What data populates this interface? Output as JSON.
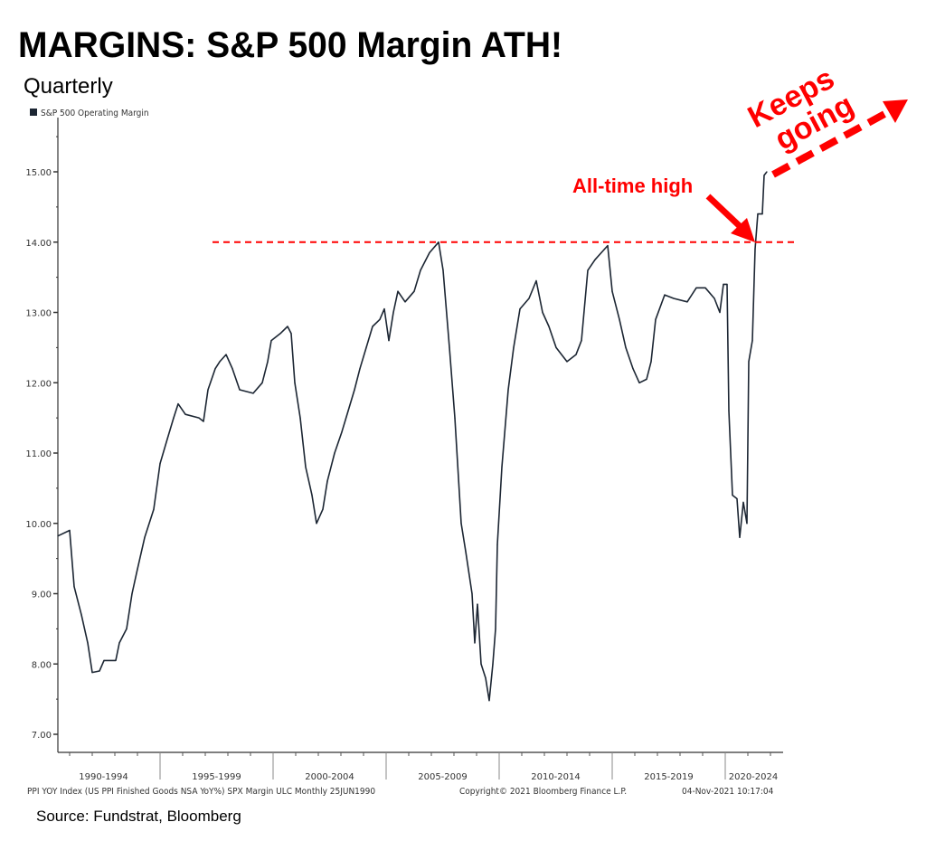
{
  "title": "MARGINS: S&P 500 Margin ATH!",
  "subtitle": "Quarterly",
  "source": "Source: Fundstrat, Bloomberg",
  "footer": {
    "left": "PPI YOY Index (US PPI Finished Goods NSA YoY%) SPX Margin ULC  Monthly 25JUN1990",
    "middle": "Copyright© 2021 Bloomberg Finance L.P.",
    "right": "04-Nov-2021 10:17:04"
  },
  "colors": {
    "line": "#1c2633",
    "annotation": "#ff0000"
  },
  "chart_data": {
    "type": "line",
    "title": "MARGINS: S&P 500 Margin ATH!",
    "xlabel": "",
    "ylabel": "",
    "legend": {
      "entries": [
        "S&P 500 Operating Margin"
      ],
      "placement": "top-left"
    },
    "ylim": [
      6.74,
      15.77
    ],
    "xlim": [
      1990,
      2024.6
    ],
    "yticks": [
      "7.00",
      "8.00",
      "9.00",
      "10.00",
      "11.00",
      "12.00",
      "13.00",
      "14.00",
      "15.00"
    ],
    "xtick_labels": [
      "1990-1994",
      "1995-1999",
      "2000-2004",
      "2005-2009",
      "2010-2014",
      "2015-2019",
      "2020-2024"
    ],
    "grid": false,
    "series": [
      {
        "name": "S&P 500 Operating Margin",
        "x": [
          1990.48,
          1991.0,
          1991.2,
          1991.52,
          1991.8,
          1992.0,
          1992.32,
          1992.52,
          1993.04,
          1993.2,
          1993.52,
          1993.76,
          1994.0,
          1994.32,
          1994.72,
          1995.0,
          1995.32,
          1995.6,
          1995.8,
          1996.12,
          1996.72,
          1996.92,
          1997.12,
          1997.44,
          1997.64,
          1997.92,
          1998.2,
          1998.52,
          1999.12,
          1999.52,
          1999.76,
          1999.92,
          2000.32,
          2000.64,
          2000.8,
          2000.96,
          2001.2,
          2001.44,
          2001.72,
          2001.92,
          2002.2,
          2002.4,
          2002.72,
          2003.04,
          2003.32,
          2003.6,
          2003.84,
          2004.12,
          2004.4,
          2004.72,
          2004.92,
          2005.12,
          2005.32,
          2005.52,
          2005.84,
          2006.24,
          2006.52,
          2006.92,
          2007.32,
          2007.52,
          2007.8,
          2008.04,
          2008.32,
          2008.52,
          2008.8,
          2008.92,
          2009.04,
          2009.2,
          2009.4,
          2009.56,
          2009.72,
          2009.84,
          2009.92,
          2010.12,
          2010.4,
          2010.64,
          2010.92,
          2011.32,
          2011.64,
          2011.92,
          2012.2,
          2012.52,
          2013.0,
          2013.4,
          2013.64,
          2013.92,
          2014.24,
          2014.52,
          2014.8,
          2015.0,
          2015.32,
          2015.6,
          2015.92,
          2016.2,
          2016.52,
          2016.72,
          2016.92,
          2017.32,
          2017.72,
          2018.32,
          2018.72,
          2019.12,
          2019.52,
          2019.76,
          2019.92,
          2020.08,
          2020.16,
          2020.32,
          2020.52,
          2020.64,
          2020.8,
          2020.96,
          2021.04,
          2021.2,
          2021.32,
          2021.44,
          2021.64,
          2021.72,
          2021.84
        ],
        "y": [
          9.82,
          9.9,
          9.1,
          8.7,
          8.3,
          7.88,
          7.9,
          8.05,
          8.05,
          8.3,
          8.5,
          9.0,
          9.35,
          9.8,
          10.2,
          10.85,
          11.2,
          11.5,
          11.7,
          11.55,
          11.5,
          11.45,
          11.9,
          12.2,
          12.3,
          12.4,
          12.2,
          11.9,
          11.85,
          12.0,
          12.3,
          12.6,
          12.7,
          12.8,
          12.7,
          12.0,
          11.5,
          10.8,
          10.4,
          10.0,
          10.2,
          10.6,
          11.0,
          11.3,
          11.6,
          11.9,
          12.2,
          12.5,
          12.8,
          12.9,
          13.05,
          12.6,
          13.0,
          13.3,
          13.15,
          13.3,
          13.6,
          13.85,
          14.0,
          13.6,
          12.5,
          11.5,
          10.0,
          9.6,
          9.0,
          8.3,
          8.85,
          8.0,
          7.8,
          7.48,
          8.0,
          8.5,
          9.7,
          10.8,
          11.9,
          12.5,
          13.05,
          13.2,
          13.45,
          13.0,
          12.8,
          12.5,
          12.3,
          12.4,
          12.6,
          13.6,
          13.75,
          13.85,
          13.95,
          13.3,
          12.9,
          12.5,
          12.2,
          12.0,
          12.05,
          12.3,
          12.9,
          13.25,
          13.2,
          13.15,
          13.35,
          13.35,
          13.2,
          13.0,
          13.4,
          13.4,
          11.6,
          10.4,
          10.35,
          9.8,
          10.3,
          10.0,
          12.3,
          12.6,
          13.9,
          14.4,
          14.4,
          14.95,
          15.0
        ]
      }
    ],
    "annotations": [
      {
        "text": "All-time high",
        "type": "arrow"
      },
      {
        "text_line1": "Keeps",
        "text_line2": "going",
        "type": "dashed-arrow"
      },
      {
        "type": "hline",
        "value": 14.0,
        "style": "dashed"
      }
    ]
  }
}
